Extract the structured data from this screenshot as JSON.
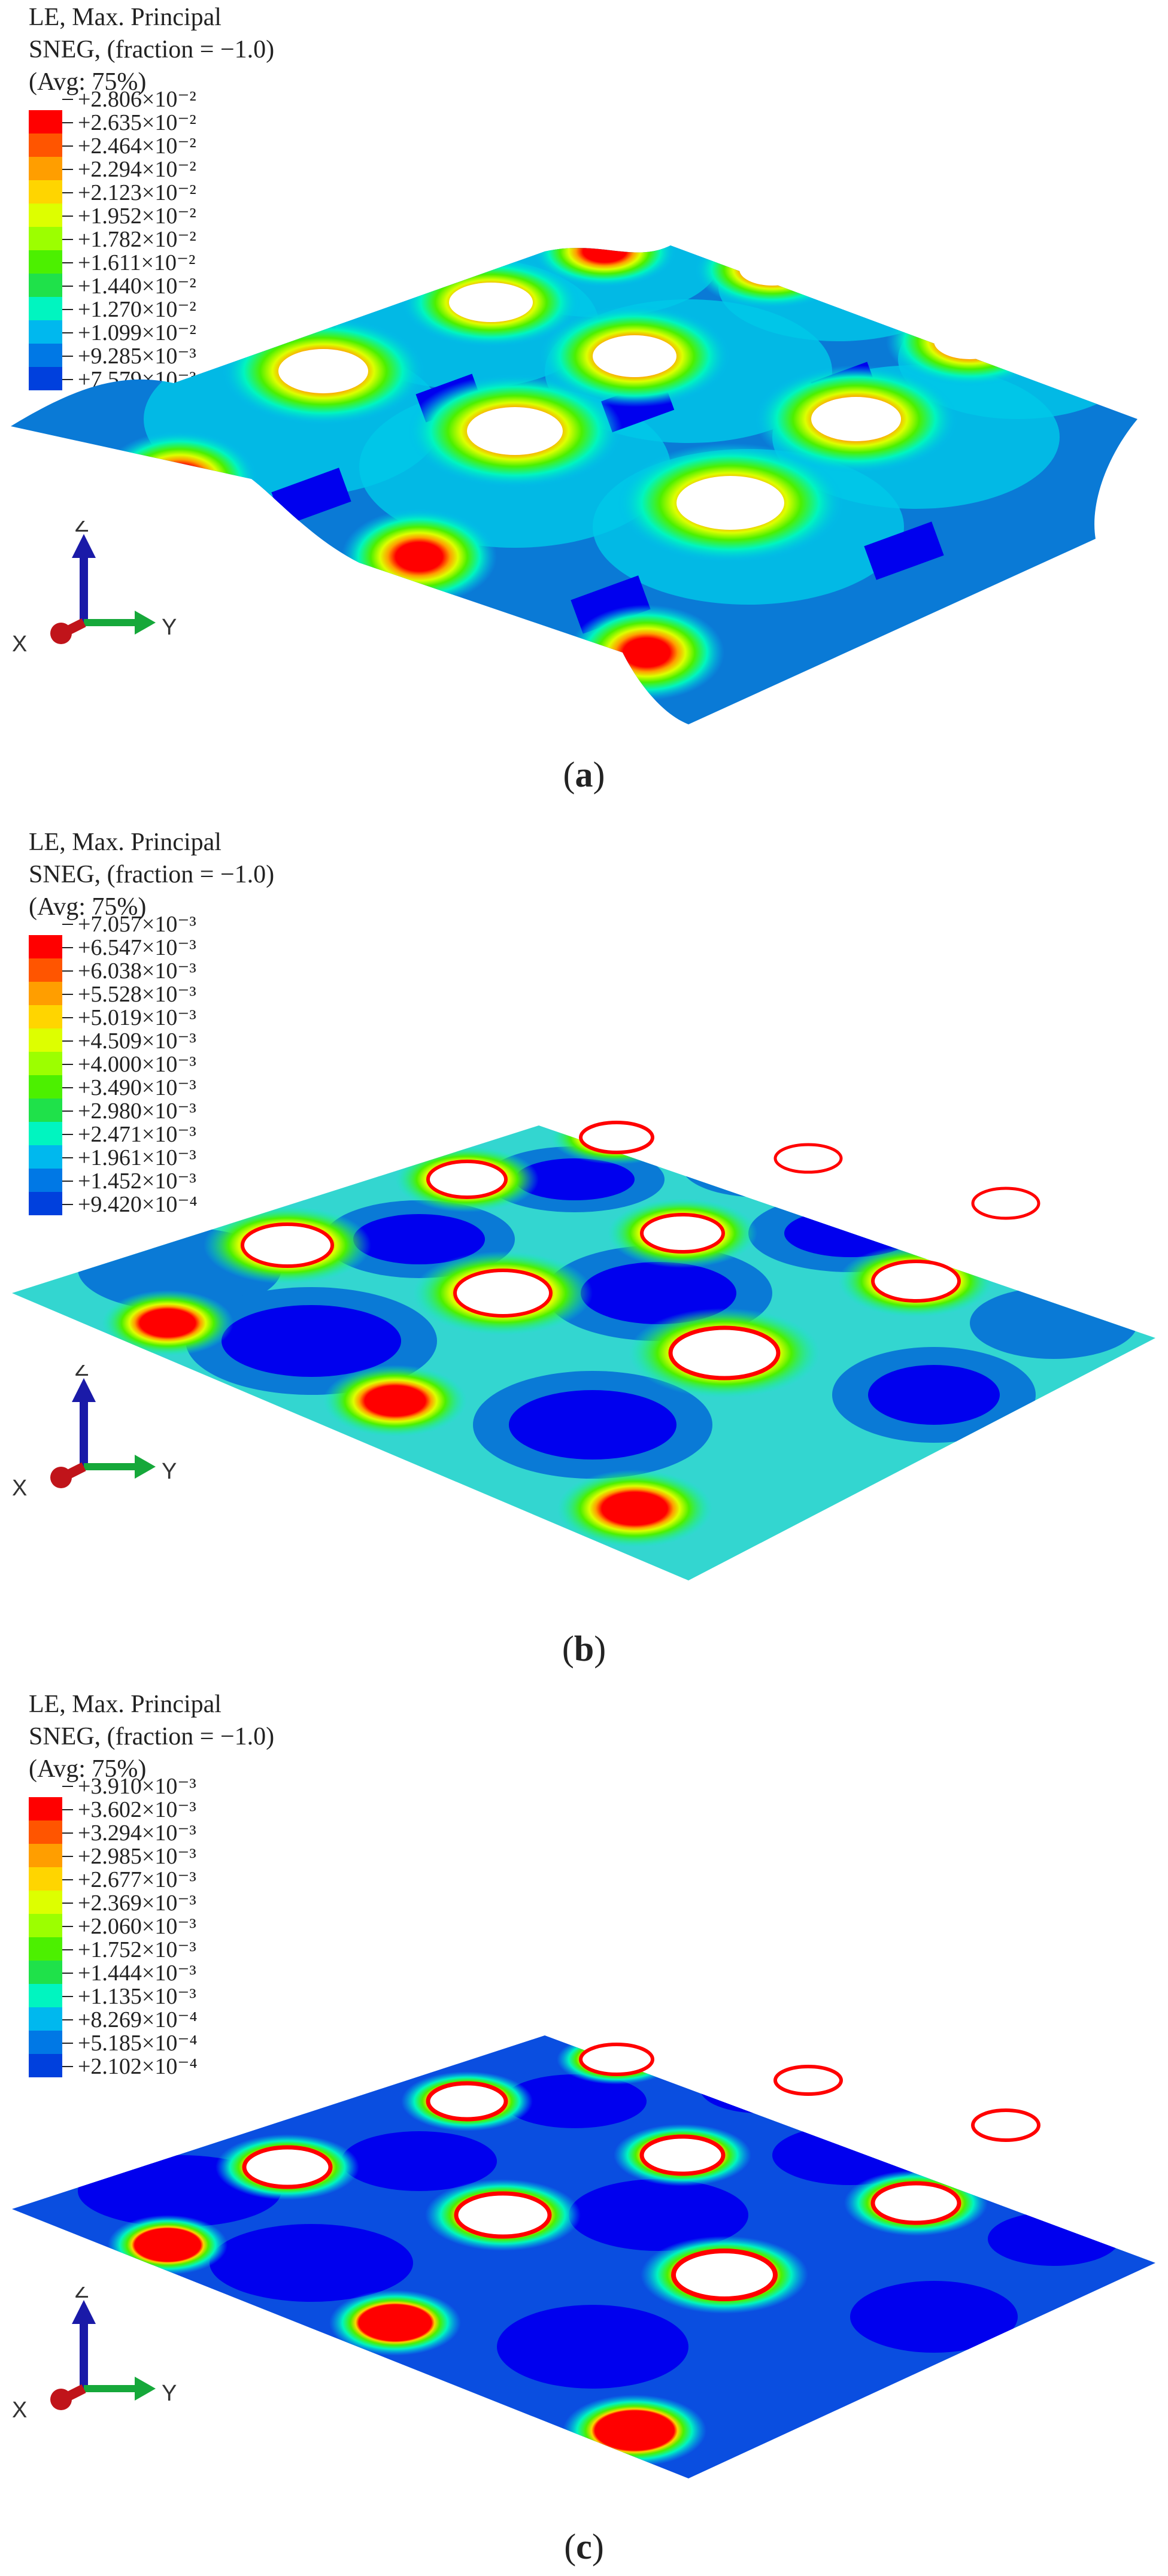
{
  "panels": [
    {
      "legend": {
        "title": "LE, Max. Principal",
        "subtitle": "SNEG, (fraction = −1.0)",
        "avg": "(Avg: 75%)",
        "values": [
          "+2.806×10⁻²",
          "+2.635×10⁻²",
          "+2.464×10⁻²",
          "+2.294×10⁻²",
          "+2.123×10⁻²",
          "+1.952×10⁻²",
          "+1.782×10⁻²",
          "+1.611×10⁻²",
          "+1.440×10⁻²",
          "+1.270×10⁻²",
          "+1.099×10⁻²",
          "+9.285×10⁻³",
          "+7.579×10⁻³"
        ]
      },
      "caption_letter": "a"
    },
    {
      "legend": {
        "title": "LE, Max. Principal",
        "subtitle": "SNEG, (fraction = −1.0)",
        "avg": "(Avg: 75%)",
        "values": [
          "+7.057×10⁻³",
          "+6.547×10⁻³",
          "+6.038×10⁻³",
          "+5.528×10⁻³",
          "+5.019×10⁻³",
          "+4.509×10⁻³",
          "+4.000×10⁻³",
          "+3.490×10⁻³",
          "+2.980×10⁻³",
          "+2.471×10⁻³",
          "+1.961×10⁻³",
          "+1.452×10⁻³",
          "+9.420×10⁻⁴"
        ]
      },
      "caption_letter": "b"
    },
    {
      "legend": {
        "title": "LE, Max. Principal",
        "subtitle": "SNEG, (fraction = −1.0)",
        "avg": "(Avg: 75%)",
        "values": [
          "+3.910×10⁻³",
          "+3.602×10⁻³",
          "+3.294×10⁻³",
          "+2.985×10⁻³",
          "+2.677×10⁻³",
          "+2.369×10⁻³",
          "+2.060×10⁻³",
          "+1.752×10⁻³",
          "+1.444×10⁻³",
          "+1.135×10⁻³",
          "+8.269×10⁻⁴",
          "+5.185×10⁻⁴",
          "+2.102×10⁻⁴"
        ]
      },
      "caption_letter": "c"
    }
  ],
  "legend_colors": [
    "#ff0000",
    "#ff5500",
    "#ff9e00",
    "#ffd500",
    "#ddff00",
    "#9cff00",
    "#4cf000",
    "#1fe14a",
    "#00f5c0",
    "#00b8ee",
    "#0078e5",
    "#0040dd",
    "#0000ee"
  ],
  "axis_labels": {
    "z": "Z",
    "x": "X",
    "y": "Y"
  },
  "axis_colors": {
    "z": "#1a1aa8",
    "x": "#c0141a",
    "y": "#16a83a"
  }
}
